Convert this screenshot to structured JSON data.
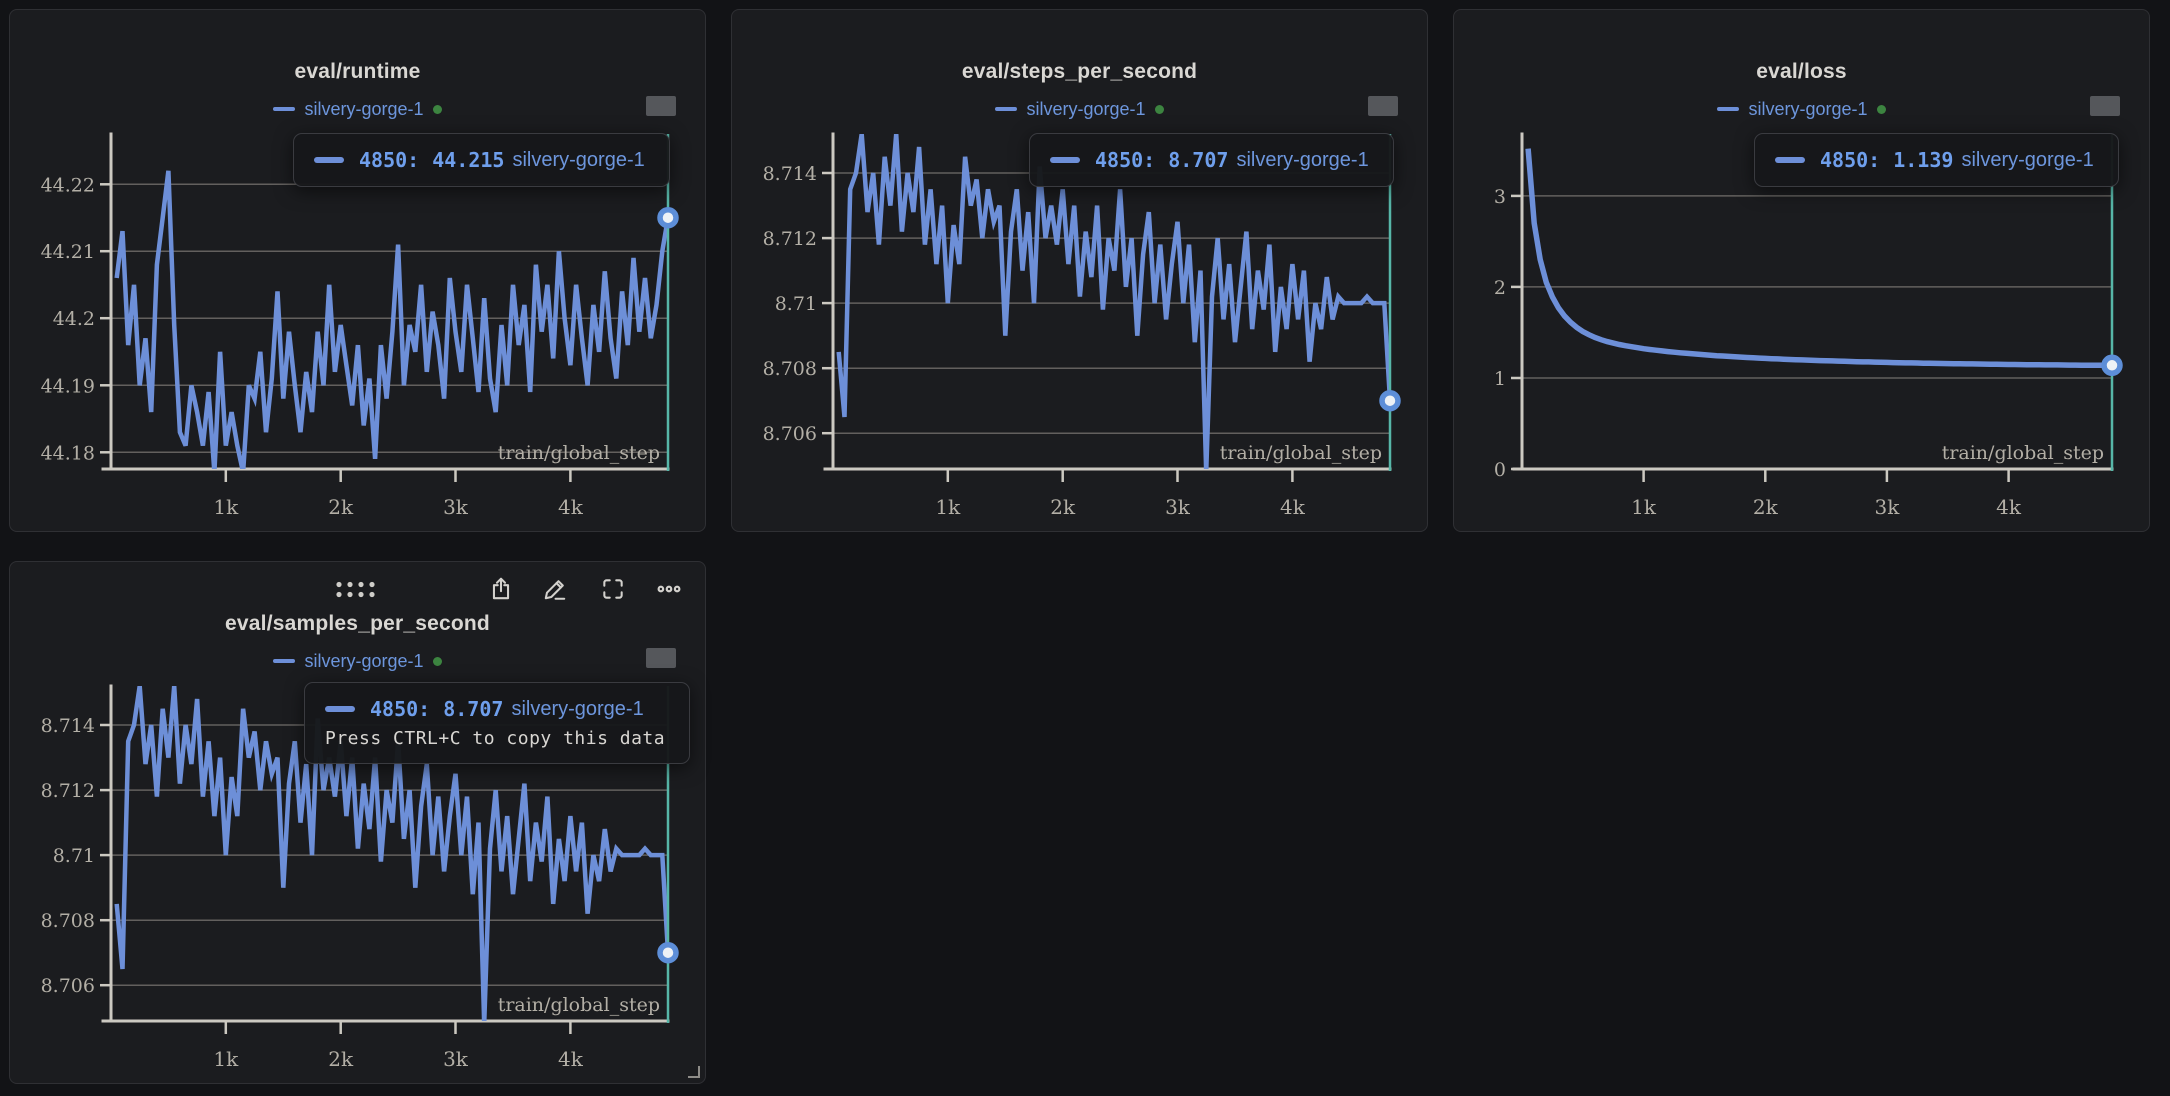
{
  "panels": [
    {
      "title": "eval/runtime",
      "run": "silvery-gorge-1",
      "tooltip_step": "4850:",
      "tooltip_value": "44.215",
      "tooltip_run": "silvery-gorge-1"
    },
    {
      "title": "eval/steps_per_second",
      "run": "silvery-gorge-1",
      "tooltip_step": "4850:",
      "tooltip_value": "8.707",
      "tooltip_run": "silvery-gorge-1"
    },
    {
      "title": "eval/loss",
      "run": "silvery-gorge-1",
      "tooltip_step": "4850:",
      "tooltip_value": "1.139",
      "tooltip_run": "silvery-gorge-1"
    },
    {
      "title": "eval/samples_per_second",
      "run": "silvery-gorge-1",
      "tooltip_step": "4850:",
      "tooltip_value": "8.707",
      "tooltip_run": "silvery-gorge-1",
      "tooltip_hint": "Press CTRL+C to copy this data"
    }
  ],
  "toolbar": {
    "icons": [
      "drag-handle",
      "share",
      "edit",
      "fullscreen",
      "more"
    ]
  },
  "colors": {
    "line_blue": "#6d8fd8",
    "crosshair_teal": "#57b6a8",
    "run_dot_green": "#3c8440",
    "panel_bg": "#1b1c1f",
    "page_bg": "#121316"
  },
  "chart_data": {
    "type": "line",
    "x_axis": {
      "label": "train/global_step",
      "range": [
        0,
        4850
      ],
      "ticks": [
        {
          "value": 1000,
          "label": "1k"
        },
        {
          "value": 2000,
          "label": "2k"
        },
        {
          "value": 3000,
          "label": "3k"
        },
        {
          "value": 4000,
          "label": "4k"
        }
      ]
    },
    "x_start": 50,
    "x_step": 50,
    "x_count": 97,
    "charts": [
      {
        "title": "eval/runtime",
        "ylim": [
          44.1775,
          44.2275
        ],
        "line_width": 4.5,
        "yticks": [
          {
            "value": 44.22,
            "label": "44.22"
          },
          {
            "value": 44.21,
            "label": "44.21"
          },
          {
            "value": 44.2,
            "label": "44.2"
          },
          {
            "value": 44.19,
            "label": "44.19"
          },
          {
            "value": 44.18,
            "label": "44.18"
          }
        ],
        "cursor": {
          "x": 4850,
          "y": 44.215
        },
        "series": [
          {
            "name": "silvery-gorge-1",
            "color": "#6d8fd8",
            "values": [
              44.206,
              44.213,
              44.196,
              44.205,
              44.19,
              44.197,
              44.186,
              44.208,
              44.215,
              44.222,
              44.199,
              44.183,
              44.181,
              44.19,
              44.186,
              44.181,
              44.189,
              44.177,
              44.195,
              44.181,
              44.186,
              44.181,
              44.177,
              44.19,
              44.188,
              44.195,
              44.183,
              44.191,
              44.204,
              44.188,
              44.198,
              44.19,
              44.183,
              44.192,
              44.186,
              44.198,
              44.19,
              44.205,
              44.192,
              44.199,
              44.193,
              44.187,
              44.196,
              44.184,
              44.191,
              44.179,
              44.196,
              44.188,
              44.198,
              44.211,
              44.19,
              44.199,
              44.195,
              44.205,
              44.192,
              44.201,
              44.196,
              44.188,
              44.206,
              44.198,
              44.192,
              44.205,
              44.197,
              44.189,
              44.203,
              44.191,
              44.186,
              44.199,
              44.19,
              44.205,
              44.196,
              44.202,
              44.189,
              44.208,
              44.198,
              44.205,
              44.194,
              44.21,
              44.2,
              44.193,
              44.205,
              44.197,
              44.19,
              44.202,
              44.195,
              44.207,
              44.197,
              44.191,
              44.204,
              44.196,
              44.209,
              44.198,
              44.206,
              44.197,
              44.202,
              44.21,
              44.215
            ]
          }
        ]
      },
      {
        "title": "eval/steps_per_second",
        "ylim": [
          8.7049,
          8.7152
        ],
        "line_width": 4.5,
        "yticks": [
          {
            "value": 8.714,
            "label": "8.714"
          },
          {
            "value": 8.712,
            "label": "8.712"
          },
          {
            "value": 8.71,
            "label": "8.71"
          },
          {
            "value": 8.708,
            "label": "8.708"
          },
          {
            "value": 8.706,
            "label": "8.706"
          }
        ],
        "cursor": {
          "x": 4850,
          "y": 8.707
        },
        "series": [
          {
            "name": "silvery-gorge-1",
            "color": "#6d8fd8",
            "values": [
              8.7085,
              8.7065,
              8.7135,
              8.714,
              8.7152,
              8.7128,
              8.714,
              8.7118,
              8.7145,
              8.713,
              8.7152,
              8.7122,
              8.714,
              8.7128,
              8.7148,
              8.7118,
              8.7135,
              8.7112,
              8.713,
              8.71,
              8.7124,
              8.7112,
              8.7145,
              8.713,
              8.7138,
              8.712,
              8.7135,
              8.7125,
              8.713,
              8.709,
              8.7122,
              8.7135,
              8.711,
              8.7128,
              8.71,
              8.7142,
              8.712,
              8.713,
              8.7118,
              8.7135,
              8.7112,
              8.713,
              8.7102,
              8.7122,
              8.7108,
              8.713,
              8.7098,
              8.712,
              8.711,
              8.7135,
              8.7105,
              8.712,
              8.709,
              8.7115,
              8.7128,
              8.71,
              8.7118,
              8.7095,
              8.7112,
              8.7125,
              8.71,
              8.7118,
              8.7088,
              8.711,
              8.7048,
              8.7102,
              8.712,
              8.7095,
              8.7112,
              8.7088,
              8.7105,
              8.7122,
              8.7092,
              8.711,
              8.7098,
              8.7118,
              8.7085,
              8.7105,
              8.7092,
              8.7112,
              8.7095,
              8.711,
              8.7082,
              8.71,
              8.7092,
              8.7108,
              8.7095,
              8.7102,
              8.71,
              8.71,
              8.71,
              8.71,
              8.7102,
              8.71,
              8.71,
              8.71,
              8.707
            ]
          }
        ]
      },
      {
        "title": "eval/loss",
        "ylim": [
          0,
          3.68
        ],
        "line_width": 5.5,
        "yticks": [
          {
            "value": 3,
            "label": "3"
          },
          {
            "value": 2,
            "label": "2"
          },
          {
            "value": 1,
            "label": "1"
          },
          {
            "value": 0,
            "label": "0"
          }
        ],
        "cursor": {
          "x": 4850,
          "y": 1.139
        },
        "series": [
          {
            "name": "silvery-gorge-1",
            "color": "#6d8fd8",
            "values": [
              3.52,
              2.7,
              2.3,
              2.05,
              1.89,
              1.77,
              1.68,
              1.61,
              1.555,
              1.51,
              1.475,
              1.445,
              1.42,
              1.4,
              1.383,
              1.368,
              1.355,
              1.343,
              1.332,
              1.322,
              1.313,
              1.305,
              1.297,
              1.29,
              1.283,
              1.277,
              1.271,
              1.265,
              1.26,
              1.255,
              1.25,
              1.245,
              1.241,
              1.237,
              1.233,
              1.229,
              1.225,
              1.222,
              1.218,
              1.215,
              1.212,
              1.209,
              1.206,
              1.203,
              1.201,
              1.198,
              1.196,
              1.193,
              1.191,
              1.189,
              1.187,
              1.185,
              1.183,
              1.181,
              1.179,
              1.177,
              1.176,
              1.174,
              1.172,
              1.171,
              1.169,
              1.168,
              1.166,
              1.165,
              1.164,
              1.162,
              1.161,
              1.16,
              1.159,
              1.158,
              1.157,
              1.156,
              1.155,
              1.154,
              1.153,
              1.152,
              1.151,
              1.15,
              1.149,
              1.148,
              1.148,
              1.147,
              1.146,
              1.145,
              1.145,
              1.144,
              1.143,
              1.143,
              1.142,
              1.141,
              1.141,
              1.14,
              1.14,
              1.139,
              1.139,
              1.139,
              1.139
            ]
          }
        ]
      },
      {
        "title": "eval/samples_per_second",
        "ylim": [
          8.7049,
          8.7152
        ],
        "line_width": 4.5,
        "yticks": [
          {
            "value": 8.714,
            "label": "8.714"
          },
          {
            "value": 8.712,
            "label": "8.712"
          },
          {
            "value": 8.71,
            "label": "8.71"
          },
          {
            "value": 8.708,
            "label": "8.708"
          },
          {
            "value": 8.706,
            "label": "8.706"
          }
        ],
        "cursor": {
          "x": 4850,
          "y": 8.707
        },
        "series": [
          {
            "name": "silvery-gorge-1",
            "color": "#6d8fd8",
            "values": [
              8.7085,
              8.7065,
              8.7135,
              8.714,
              8.7152,
              8.7128,
              8.714,
              8.7118,
              8.7145,
              8.713,
              8.7152,
              8.7122,
              8.714,
              8.7128,
              8.7148,
              8.7118,
              8.7135,
              8.7112,
              8.713,
              8.71,
              8.7124,
              8.7112,
              8.7145,
              8.713,
              8.7138,
              8.712,
              8.7135,
              8.7125,
              8.713,
              8.709,
              8.7122,
              8.7135,
              8.711,
              8.7128,
              8.71,
              8.7142,
              8.712,
              8.713,
              8.7118,
              8.7135,
              8.7112,
              8.713,
              8.7102,
              8.7122,
              8.7108,
              8.713,
              8.7098,
              8.712,
              8.711,
              8.7135,
              8.7105,
              8.712,
              8.709,
              8.7115,
              8.7128,
              8.71,
              8.7118,
              8.7095,
              8.7112,
              8.7125,
              8.71,
              8.7118,
              8.7088,
              8.711,
              8.7048,
              8.7102,
              8.712,
              8.7095,
              8.7112,
              8.7088,
              8.7105,
              8.7122,
              8.7092,
              8.711,
              8.7098,
              8.7118,
              8.7085,
              8.7105,
              8.7092,
              8.7112,
              8.7095,
              8.711,
              8.7082,
              8.71,
              8.7092,
              8.7108,
              8.7095,
              8.7102,
              8.71,
              8.71,
              8.71,
              8.71,
              8.7102,
              8.71,
              8.71,
              8.71,
              8.707
            ]
          }
        ]
      }
    ]
  }
}
